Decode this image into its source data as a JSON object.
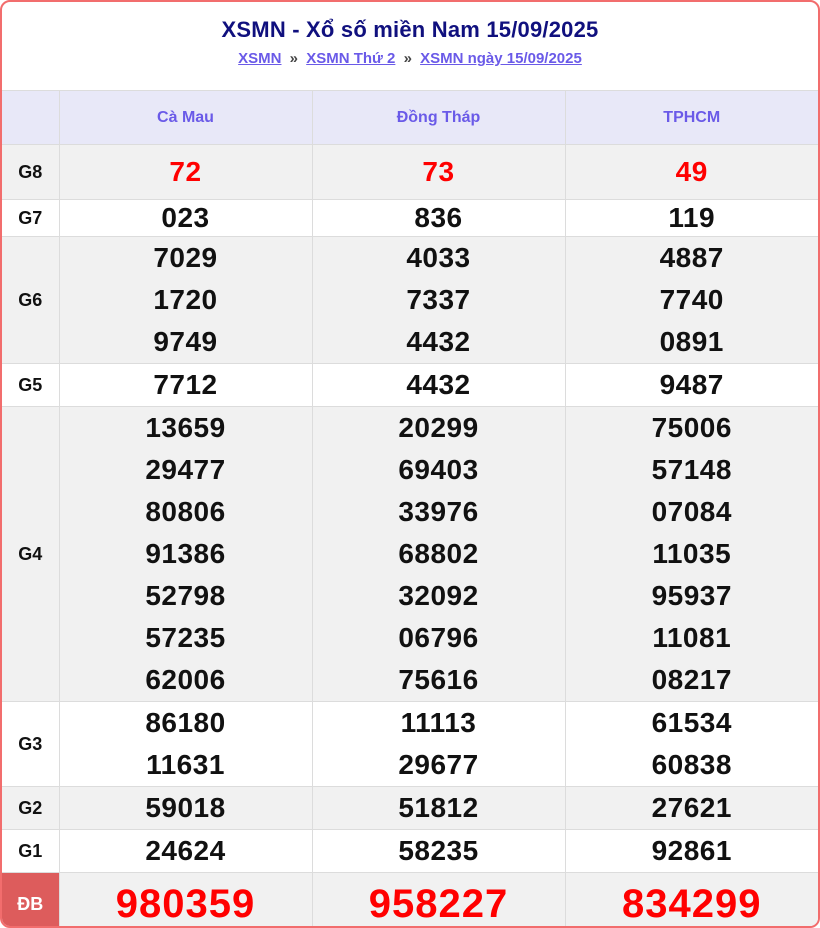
{
  "header": {
    "title": "XSMN - Xổ số miền Nam 15/09/2025",
    "breadcrumb": {
      "separator": "»",
      "items": [
        "XSMN",
        "XSMN Thứ 2",
        "XSMN ngày 15/09/2025"
      ]
    }
  },
  "table": {
    "provinces": [
      "Cà Mau",
      "Đồng Tháp",
      "TPHCM"
    ],
    "rows": [
      {
        "label": "G8",
        "value_style": "red",
        "values": [
          [
            "72"
          ],
          [
            "73"
          ],
          [
            "49"
          ]
        ]
      },
      {
        "label": "G7",
        "value_style": "normal",
        "values": [
          [
            "023"
          ],
          [
            "836"
          ],
          [
            "119"
          ]
        ]
      },
      {
        "label": "G6",
        "value_style": "normal",
        "values": [
          [
            "7029",
            "1720",
            "9749"
          ],
          [
            "4033",
            "7337",
            "4432"
          ],
          [
            "4887",
            "7740",
            "0891"
          ]
        ]
      },
      {
        "label": "G5",
        "value_style": "normal",
        "values": [
          [
            "7712"
          ],
          [
            "4432"
          ],
          [
            "9487"
          ]
        ]
      },
      {
        "label": "G4",
        "value_style": "normal",
        "values": [
          [
            "13659",
            "29477",
            "80806",
            "91386",
            "52798",
            "57235",
            "62006"
          ],
          [
            "20299",
            "69403",
            "33976",
            "68802",
            "32092",
            "06796",
            "75616"
          ],
          [
            "75006",
            "57148",
            "07084",
            "11035",
            "95937",
            "11081",
            "08217"
          ]
        ]
      },
      {
        "label": "G3",
        "value_style": "normal",
        "values": [
          [
            "86180",
            "11631"
          ],
          [
            "11113",
            "29677"
          ],
          [
            "61534",
            "60838"
          ]
        ]
      },
      {
        "label": "G2",
        "value_style": "normal",
        "values": [
          [
            "59018"
          ],
          [
            "51812"
          ],
          [
            "27621"
          ]
        ]
      },
      {
        "label": "G1",
        "value_style": "normal",
        "values": [
          [
            "24624"
          ],
          [
            "58235"
          ],
          [
            "92861"
          ]
        ]
      },
      {
        "label": "ĐB",
        "value_style": "jackpot",
        "values": [
          [
            "980359"
          ],
          [
            "958227"
          ],
          [
            "834299"
          ]
        ]
      }
    ]
  },
  "colors": {
    "card_border": "#f26d6d",
    "title_text": "#10107e",
    "link_text": "#6a5ae8",
    "number_red": "#ff0000",
    "number_black": "#111111",
    "db_label_bg": "#dd5c5c",
    "header_row_bg": "#e8e8f8",
    "shade_row_bg": "#f1f1f1",
    "grid_line": "#dcdcdc"
  }
}
